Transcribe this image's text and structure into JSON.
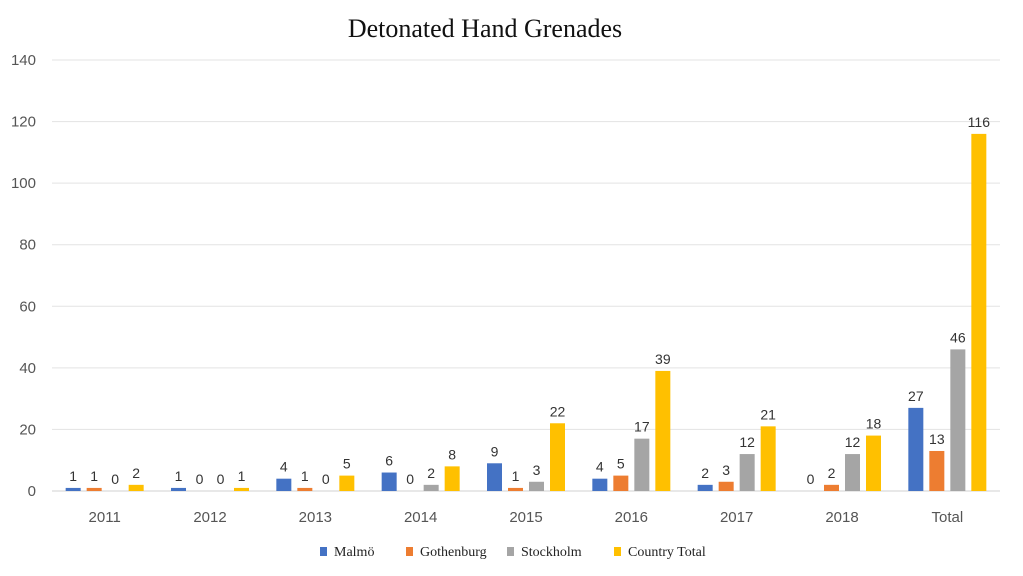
{
  "chart_data": {
    "type": "bar",
    "title": "Detonated Hand Grenades",
    "xlabel": "",
    "ylabel": "",
    "ylim": [
      0,
      140
    ],
    "yticks": [
      0,
      20,
      40,
      60,
      80,
      100,
      120,
      140
    ],
    "grid": true,
    "legend_position": "bottom",
    "categories": [
      "2011",
      "2012",
      "2013",
      "2014",
      "2015",
      "2016",
      "2017",
      "2018",
      "Total"
    ],
    "series": [
      {
        "name": "Malmö",
        "color": "#4472c4",
        "values": [
          1,
          1,
          4,
          6,
          9,
          4,
          2,
          0,
          27
        ]
      },
      {
        "name": "Gothenburg",
        "color": "#ed7d31",
        "values": [
          1,
          0,
          1,
          0,
          1,
          5,
          3,
          2,
          13
        ]
      },
      {
        "name": "Stockholm",
        "color": "#a5a5a5",
        "values": [
          0,
          0,
          0,
          2,
          3,
          17,
          12,
          12,
          46
        ]
      },
      {
        "name": "Country Total",
        "color": "#ffc000",
        "values": [
          2,
          1,
          5,
          8,
          22,
          39,
          21,
          18,
          116
        ]
      }
    ]
  }
}
